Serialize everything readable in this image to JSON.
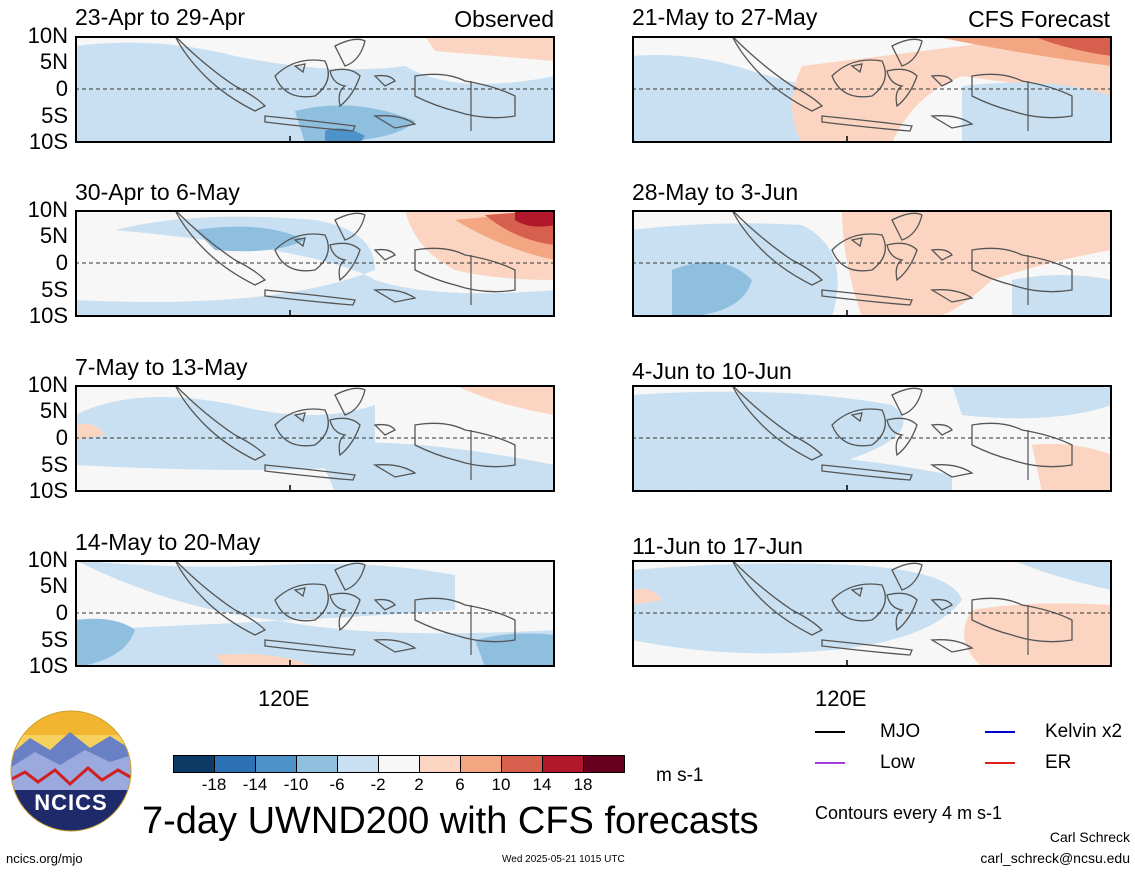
{
  "header": {
    "left_tag": "Observed",
    "right_tag": "CFS Forecast"
  },
  "panels": [
    {
      "title": "23-Apr to 29-Apr",
      "column": "observed"
    },
    {
      "title": "30-Apr to 6-May",
      "column": "observed"
    },
    {
      "title": "7-May to 13-May",
      "column": "observed"
    },
    {
      "title": "14-May to 20-May",
      "column": "observed"
    },
    {
      "title": "21-May to 27-May",
      "column": "forecast"
    },
    {
      "title": "28-May to 3-Jun",
      "column": "forecast"
    },
    {
      "title": "4-Jun to 10-Jun",
      "column": "forecast"
    },
    {
      "title": "11-Jun to 17-Jun",
      "column": "forecast"
    }
  ],
  "lat_labels": [
    "10N",
    "5N",
    "0",
    "5S",
    "10S"
  ],
  "lon_label": "120E",
  "colorbar": {
    "ticks": [
      "-18",
      "-14",
      "-10",
      "-6",
      "-2",
      "2",
      "6",
      "10",
      "14",
      "18"
    ],
    "units": "m s-1",
    "colors": [
      "#0c3a64",
      "#2b71b3",
      "#4d92c8",
      "#8fbfdf",
      "#c8e0f1",
      "#f7f7f7",
      "#fbd5c1",
      "#f4a582",
      "#d6604d",
      "#b2182b",
      "#67001f"
    ]
  },
  "legend": {
    "items": [
      {
        "label": "MJO",
        "color": "#000000"
      },
      {
        "label": "Kelvin x2",
        "color": "#0000cc"
      },
      {
        "label": "Low",
        "color": "#a040e0"
      },
      {
        "label": "ER",
        "color": "#e02020"
      }
    ],
    "contours_note": "Contours every 4 m s-1"
  },
  "main_title": "7-day UWND200 with CFS forecasts",
  "logo_text": "NCICS",
  "footer": {
    "url": "ncics.org/mjo",
    "timestamp": "Wed 2025-05-21 1015 UTC",
    "author": "Carl Schreck",
    "email": "carl_schreck@ncsu.edu"
  }
}
